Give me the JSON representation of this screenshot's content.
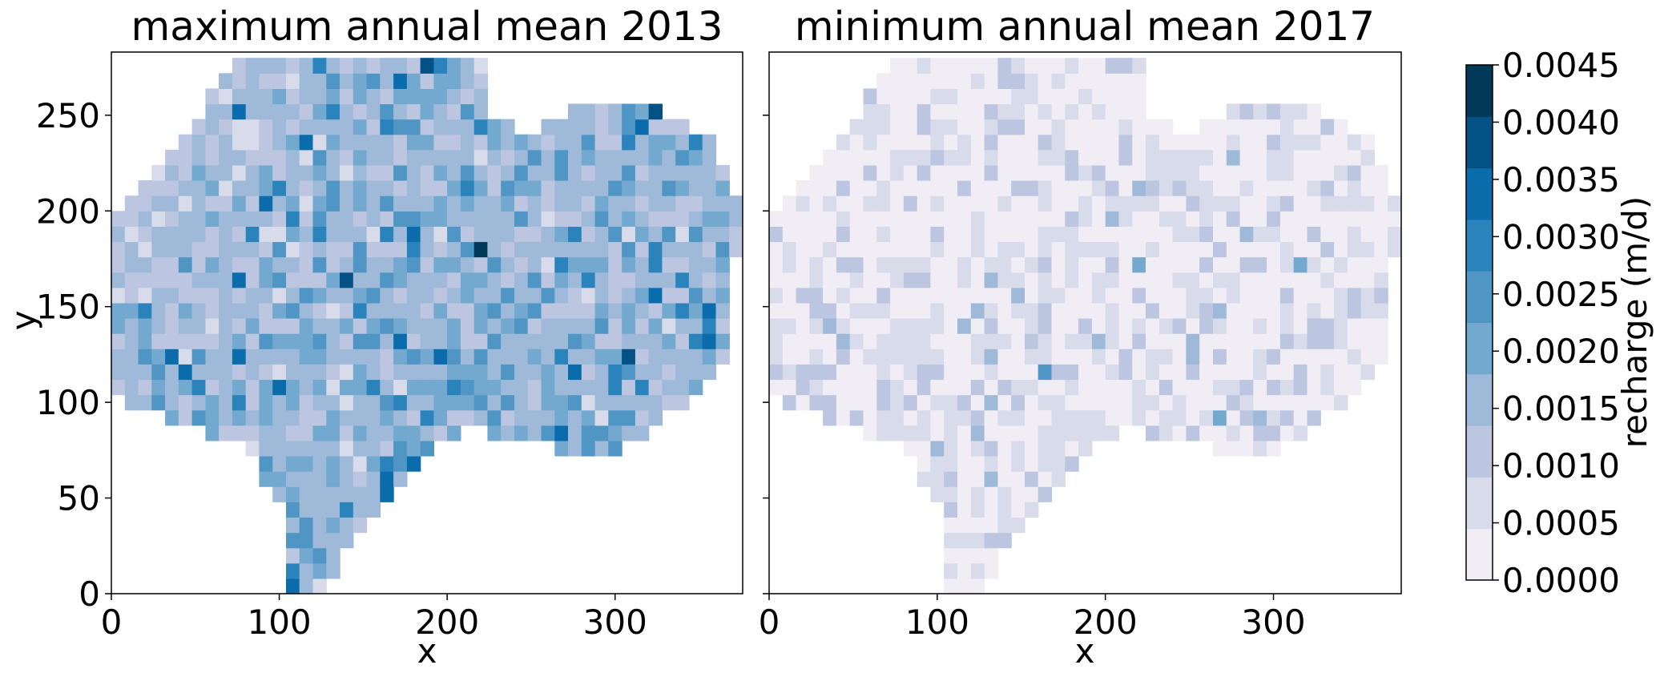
{
  "chart_data": [
    {
      "type": "heatmap",
      "title": "maximum annual mean 2013",
      "xlabel": "x",
      "ylabel": "y",
      "xlim": [
        0,
        376
      ],
      "ylim": [
        0,
        283
      ],
      "xticks": [
        "0",
        "100",
        "200",
        "300"
      ],
      "yticks": [
        "0",
        "50",
        "100",
        "150",
        "200",
        "250"
      ],
      "level_weights": [
        0.0,
        0.04,
        0.22,
        0.4,
        0.2,
        0.09,
        0.03,
        0.015,
        0.004,
        0.001
      ],
      "field_description": "gridded recharge; values mostly 0.0005-0.0025 m/d, highest in south-east lobe"
    },
    {
      "type": "heatmap",
      "title": "minimum annual mean 2017",
      "xlabel": "x",
      "ylabel": "",
      "xlim": [
        0,
        376
      ],
      "ylim": [
        0,
        283
      ],
      "xticks": [
        "0",
        "100",
        "200",
        "300"
      ],
      "yticks": [],
      "level_weights": [
        0.55,
        0.3,
        0.11,
        0.03,
        0.008,
        0.002,
        0,
        0,
        0,
        0
      ],
      "field_description": "gridded recharge; values mostly 0.0000-0.0010 m/d"
    }
  ],
  "colorbar": {
    "label": "recharge (m/d)",
    "ticks": [
      "0.0000",
      "0.0005",
      "0.0010",
      "0.0015",
      "0.0020",
      "0.0025",
      "0.0030",
      "0.0035",
      "0.0040",
      "0.0045"
    ],
    "colors": [
      "#f0edf5",
      "#d8dbea",
      "#bcc6e0",
      "#9ebad8",
      "#74a9cf",
      "#4f96c4",
      "#2b83bb",
      "#0b6cab",
      "#045185",
      "#023858"
    ]
  }
}
